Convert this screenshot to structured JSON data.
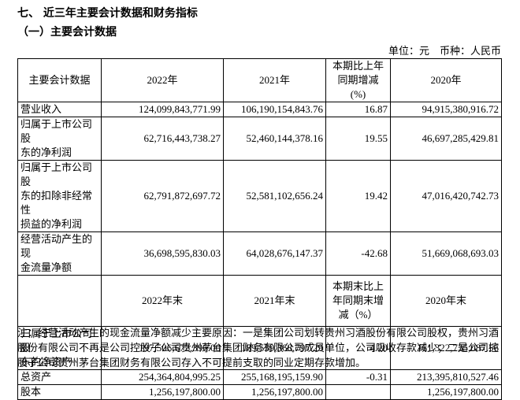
{
  "heading": "七、 近三年主要会计数据和财务指标",
  "subheading": "（一）主要会计数据",
  "unit_note": "单位：元　币种：人民币",
  "table": {
    "sections": [
      {
        "header": [
          "主要会计数据",
          "2022年",
          "2021年",
          "本期比上年\n同期增减\n(%)",
          "2020年"
        ],
        "rows": [
          [
            "营业收入",
            "124,099,843,771.99",
            "106,190,154,843.76",
            "16.87",
            "94,915,380,916.72"
          ],
          [
            "归属于上市公司股\n东的净利润",
            "62,716,443,738.27",
            "52,460,144,378.16",
            "19.55",
            "46,697,285,429.81"
          ],
          [
            "归属于上市公司股\n东的扣除非经常性\n损益的净利润",
            "62,791,872,697.72",
            "52,581,102,656.24",
            "19.42",
            "47,016,420,742.73"
          ],
          [
            "经营活动产生的现\n金流量净额",
            "36,698,595,830.03",
            "64,028,676,147.37",
            "-42.68",
            "51,669,068,693.03"
          ]
        ]
      },
      {
        "header": [
          "2022年末",
          "2021年末",
          "本期末比上\n年同期末增\n减（%）",
          "2020年末"
        ],
        "rows": [
          [
            "归属于上市公司股\n东的净资产",
            "197,506,672,396.00",
            "189,539,368,797.29",
            "4.20",
            "161,322,735,087.56"
          ],
          [
            "总资产",
            "254,364,804,995.25",
            "255,168,195,159.90",
            "-0.31",
            "213,395,810,527.46"
          ],
          [
            "股本",
            "1,256,197,800.00",
            "1,256,197,800.00",
            null,
            "1,256,197,800.00"
          ]
        ]
      }
    ]
  },
  "note": "注：经营活动产生的现金流量净额减少主要原因：一是集团公司划转贵州习酒股份有限公司股权，贵州习酒股份有限公司不再是公司控股子公司贵州茅台集团财务有限公司成员单位，公司吸收存款减少；二是公司控股子公司贵州茅台集团财务有限公司存入不可提前支取的同业定期存款增加。"
}
